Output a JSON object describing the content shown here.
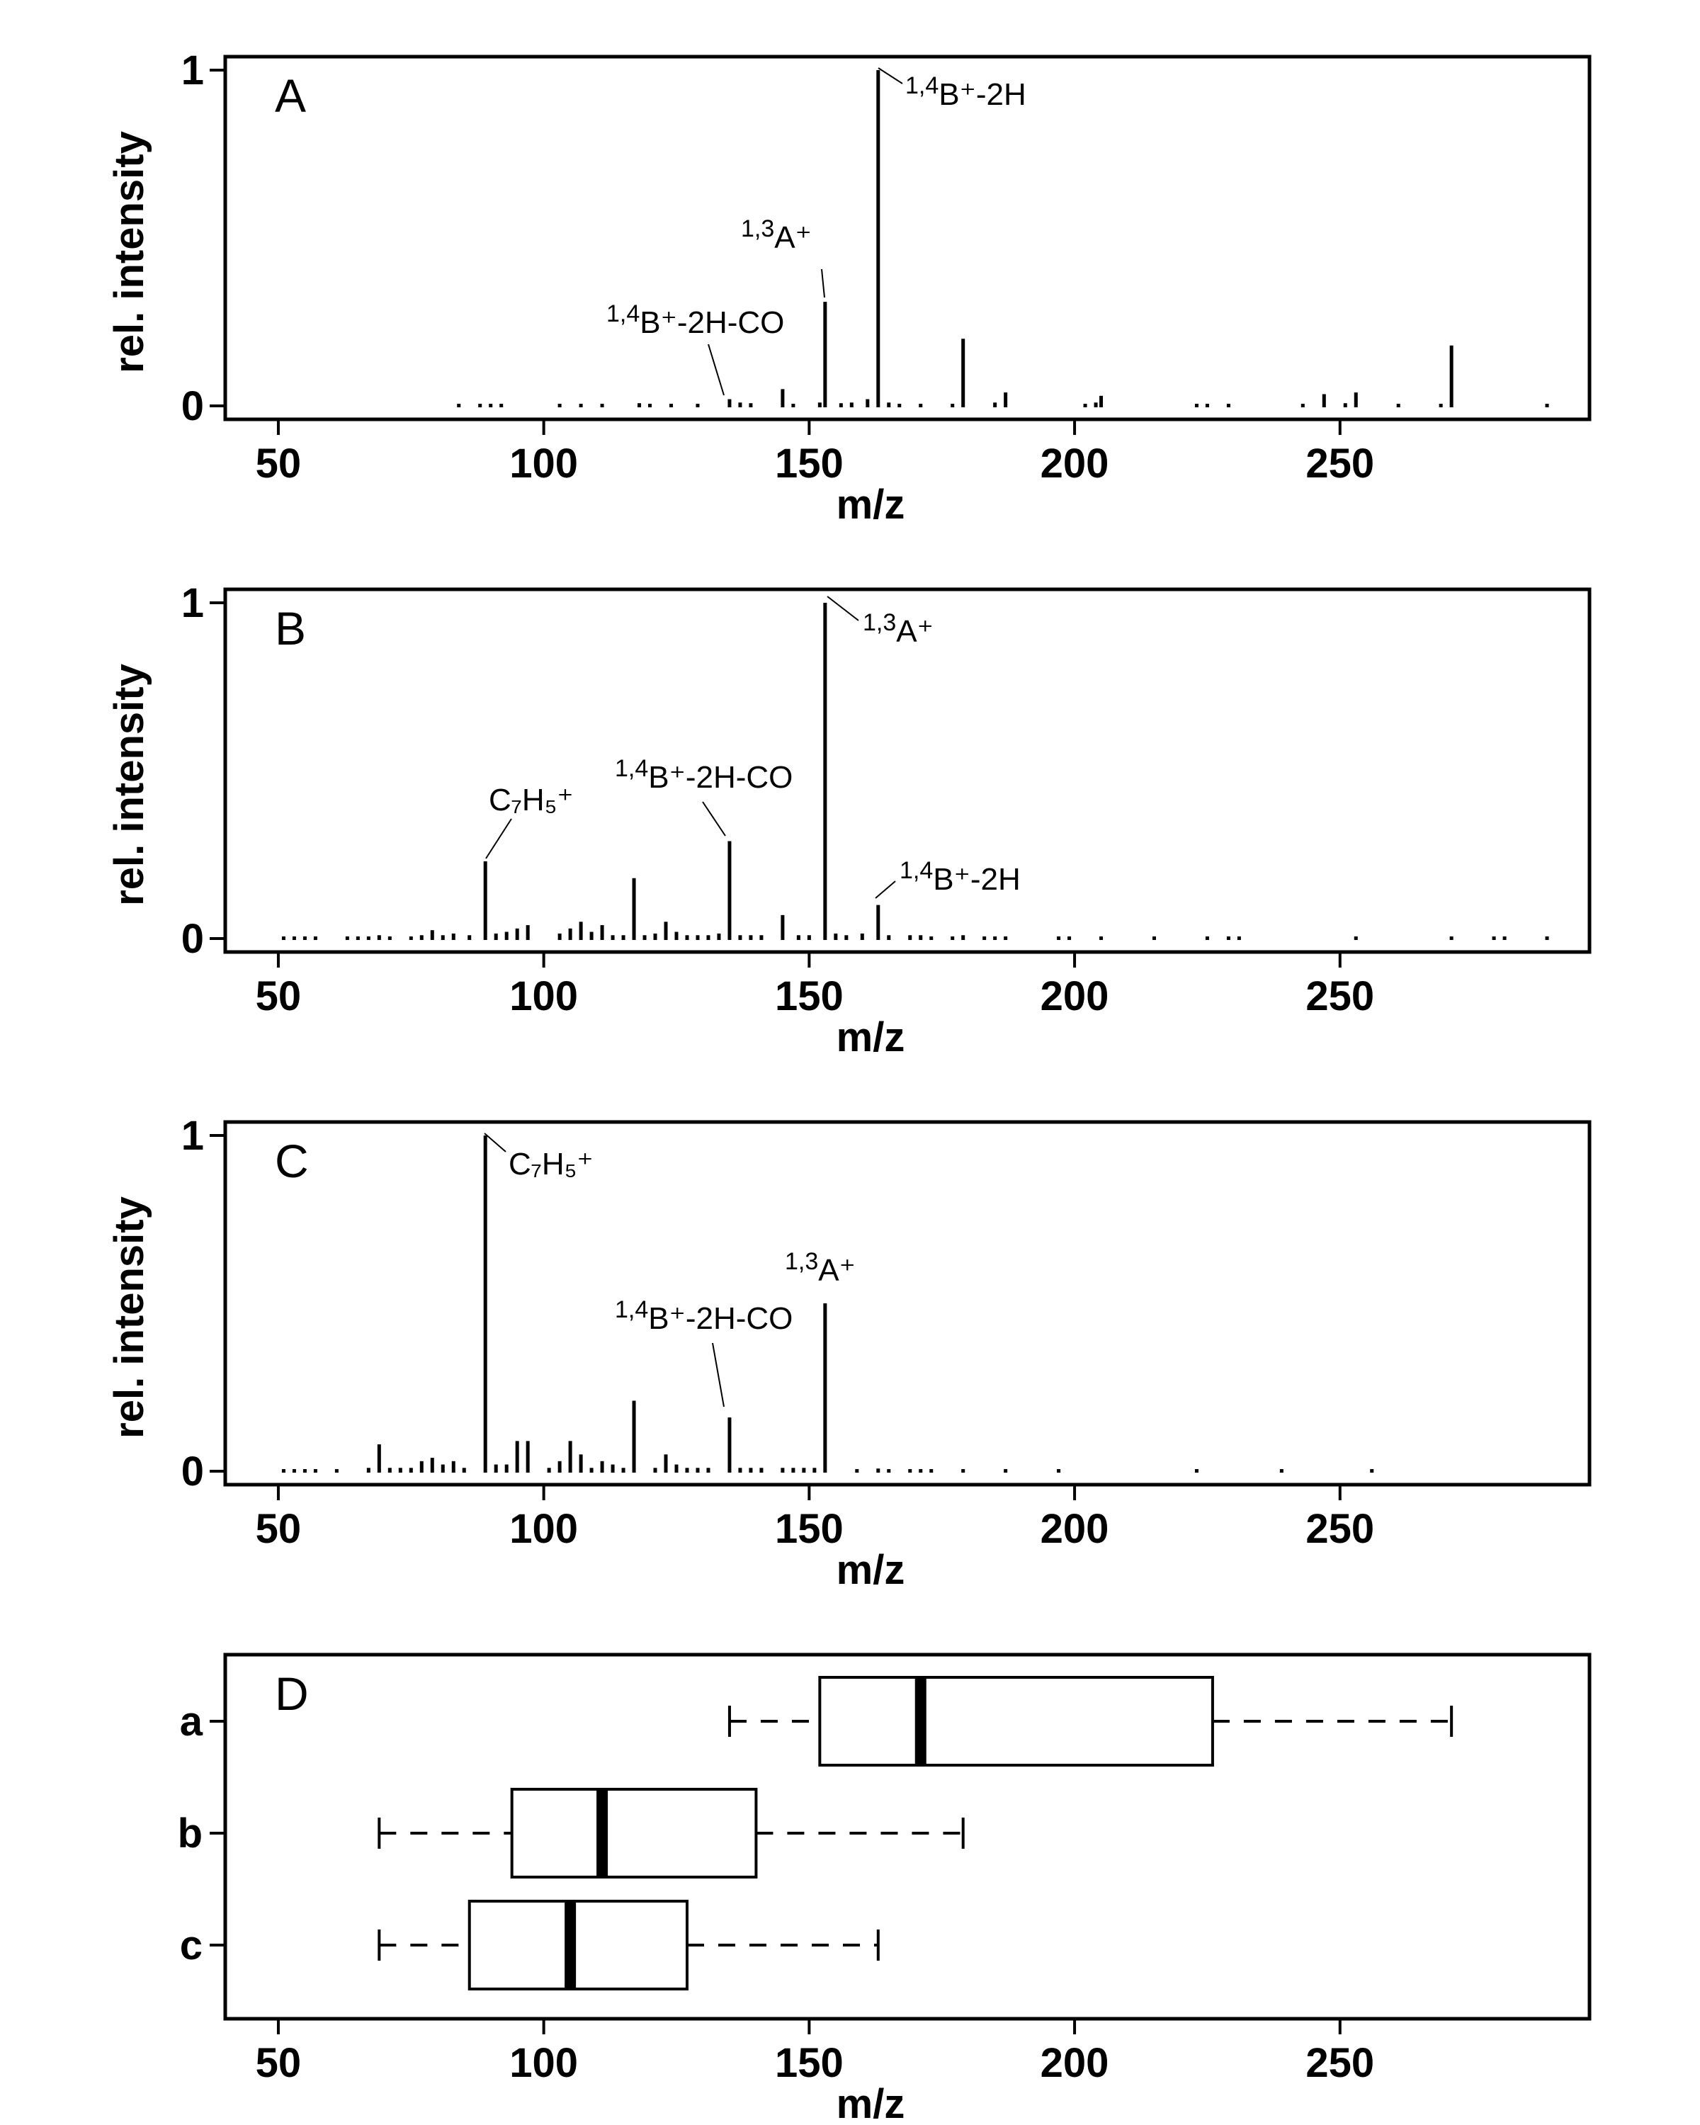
{
  "chart_data": [
    {
      "type": "bar",
      "panel_label": "A",
      "xlabel": "m/z",
      "ylabel": "rel. intensity",
      "xlim": [
        40,
        297
      ],
      "ylim": [
        -0.04,
        1.04
      ],
      "x_ticks": [
        50,
        100,
        150,
        200,
        250
      ],
      "y_ticks": [
        0,
        1
      ],
      "peaks": [
        {
          "x": 84,
          "y": 0.006
        },
        {
          "x": 88,
          "y": 0.005
        },
        {
          "x": 90,
          "y": 0.006
        },
        {
          "x": 92,
          "y": 0.005
        },
        {
          "x": 103,
          "y": 0.005
        },
        {
          "x": 107,
          "y": 0.006
        },
        {
          "x": 111,
          "y": 0.006
        },
        {
          "x": 118,
          "y": 0.008
        },
        {
          "x": 120,
          "y": 0.006
        },
        {
          "x": 124,
          "y": 0.005
        },
        {
          "x": 129,
          "y": 0.006
        },
        {
          "x": 135,
          "y": 0.02
        },
        {
          "x": 137,
          "y": 0.01
        },
        {
          "x": 139,
          "y": 0.008
        },
        {
          "x": 145,
          "y": 0.05
        },
        {
          "x": 147,
          "y": 0.006
        },
        {
          "x": 152,
          "y": 0.01
        },
        {
          "x": 153,
          "y": 0.31
        },
        {
          "x": 156,
          "y": 0.008
        },
        {
          "x": 158,
          "y": 0.01
        },
        {
          "x": 161,
          "y": 0.02
        },
        {
          "x": 163,
          "y": 1.0
        },
        {
          "x": 165,
          "y": 0.01
        },
        {
          "x": 167,
          "y": 0.006
        },
        {
          "x": 171,
          "y": 0.006
        },
        {
          "x": 177,
          "y": 0.006
        },
        {
          "x": 179,
          "y": 0.2
        },
        {
          "x": 185,
          "y": 0.01
        },
        {
          "x": 187,
          "y": 0.04
        },
        {
          "x": 202,
          "y": 0.006
        },
        {
          "x": 204,
          "y": 0.01
        },
        {
          "x": 205,
          "y": 0.03
        },
        {
          "x": 223,
          "y": 0.006
        },
        {
          "x": 225,
          "y": 0.006
        },
        {
          "x": 229,
          "y": 0.006
        },
        {
          "x": 243,
          "y": 0.006
        },
        {
          "x": 247,
          "y": 0.035
        },
        {
          "x": 251,
          "y": 0.008
        },
        {
          "x": 253,
          "y": 0.04
        },
        {
          "x": 261,
          "y": 0.005
        },
        {
          "x": 269,
          "y": 0.006
        },
        {
          "x": 271,
          "y": 0.18
        },
        {
          "x": 289,
          "y": 0.005
        }
      ],
      "annotations": [
        {
          "sup": "1,4",
          "text": "B⁺-2H",
          "peak_x": 163,
          "peak_y": 1.0
        },
        {
          "sup": "1,3",
          "text": "A⁺",
          "peak_x": 153,
          "peak_y": 0.31
        },
        {
          "sup": "1,4",
          "text": "B⁺-2H-CO",
          "peak_x": 135,
          "peak_y": 0.02
        }
      ]
    },
    {
      "type": "bar",
      "panel_label": "B",
      "xlabel": "m/z",
      "ylabel": "rel. intensity",
      "xlim": [
        40,
        297
      ],
      "ylim": [
        -0.04,
        1.04
      ],
      "x_ticks": [
        50,
        100,
        150,
        200,
        250
      ],
      "y_ticks": [
        0,
        1
      ],
      "peaks": [
        {
          "x": 51,
          "y": 0.006
        },
        {
          "x": 53,
          "y": 0.006
        },
        {
          "x": 55,
          "y": 0.006
        },
        {
          "x": 57,
          "y": 0.005
        },
        {
          "x": 63,
          "y": 0.006
        },
        {
          "x": 65,
          "y": 0.006
        },
        {
          "x": 67,
          "y": 0.006
        },
        {
          "x": 69,
          "y": 0.01
        },
        {
          "x": 71,
          "y": 0.006
        },
        {
          "x": 75,
          "y": 0.006
        },
        {
          "x": 77,
          "y": 0.01
        },
        {
          "x": 79,
          "y": 0.025
        },
        {
          "x": 81,
          "y": 0.01
        },
        {
          "x": 83,
          "y": 0.015
        },
        {
          "x": 86,
          "y": 0.01
        },
        {
          "x": 89,
          "y": 0.23
        },
        {
          "x": 91,
          "y": 0.015
        },
        {
          "x": 93,
          "y": 0.02
        },
        {
          "x": 95,
          "y": 0.03
        },
        {
          "x": 97,
          "y": 0.04
        },
        {
          "x": 103,
          "y": 0.015
        },
        {
          "x": 105,
          "y": 0.03
        },
        {
          "x": 107,
          "y": 0.05
        },
        {
          "x": 109,
          "y": 0.02
        },
        {
          "x": 111,
          "y": 0.04
        },
        {
          "x": 113,
          "y": 0.01
        },
        {
          "x": 115,
          "y": 0.01
        },
        {
          "x": 117,
          "y": 0.18
        },
        {
          "x": 119,
          "y": 0.01
        },
        {
          "x": 121,
          "y": 0.015
        },
        {
          "x": 123,
          "y": 0.05
        },
        {
          "x": 125,
          "y": 0.02
        },
        {
          "x": 127,
          "y": 0.01
        },
        {
          "x": 129,
          "y": 0.01
        },
        {
          "x": 131,
          "y": 0.01
        },
        {
          "x": 133,
          "y": 0.015
        },
        {
          "x": 135,
          "y": 0.29
        },
        {
          "x": 137,
          "y": 0.01
        },
        {
          "x": 139,
          "y": 0.01
        },
        {
          "x": 141,
          "y": 0.01
        },
        {
          "x": 145,
          "y": 0.07
        },
        {
          "x": 148,
          "y": 0.01
        },
        {
          "x": 150,
          "y": 0.01
        },
        {
          "x": 153,
          "y": 1.0
        },
        {
          "x": 155,
          "y": 0.015
        },
        {
          "x": 157,
          "y": 0.01
        },
        {
          "x": 160,
          "y": 0.015
        },
        {
          "x": 163,
          "y": 0.1
        },
        {
          "x": 165,
          "y": 0.01
        },
        {
          "x": 169,
          "y": 0.01
        },
        {
          "x": 171,
          "y": 0.01
        },
        {
          "x": 173,
          "y": 0.006
        },
        {
          "x": 177,
          "y": 0.006
        },
        {
          "x": 179,
          "y": 0.01
        },
        {
          "x": 183,
          "y": 0.006
        },
        {
          "x": 185,
          "y": 0.006
        },
        {
          "x": 187,
          "y": 0.006
        },
        {
          "x": 197,
          "y": 0.006
        },
        {
          "x": 199,
          "y": 0.005
        },
        {
          "x": 205,
          "y": 0.006
        },
        {
          "x": 215,
          "y": 0.005
        },
        {
          "x": 225,
          "y": 0.005
        },
        {
          "x": 229,
          "y": 0.005
        },
        {
          "x": 231,
          "y": 0.005
        },
        {
          "x": 253,
          "y": 0.005
        },
        {
          "x": 271,
          "y": 0.006
        },
        {
          "x": 279,
          "y": 0.005
        },
        {
          "x": 281,
          "y": 0.005
        },
        {
          "x": 289,
          "y": 0.005
        }
      ],
      "annotations": [
        {
          "sup": "1,3",
          "text": "A⁺",
          "peak_x": 153,
          "peak_y": 1.0
        },
        {
          "sup": "1,4",
          "text": "B⁺-2H-CO",
          "peak_x": 135,
          "peak_y": 0.29
        },
        {
          "sup": "",
          "text": "C₇H₅⁺",
          "peak_x": 89,
          "peak_y": 0.23
        },
        {
          "sup": "1,4",
          "text": "B⁺-2H",
          "peak_x": 163,
          "peak_y": 0.1
        }
      ]
    },
    {
      "type": "bar",
      "panel_label": "C",
      "xlabel": "m/z",
      "ylabel": "rel. intensity",
      "xlim": [
        40,
        297
      ],
      "ylim": [
        -0.04,
        1.04
      ],
      "x_ticks": [
        50,
        100,
        150,
        200,
        250
      ],
      "y_ticks": [
        0,
        1
      ],
      "peaks": [
        {
          "x": 51,
          "y": 0.006
        },
        {
          "x": 53,
          "y": 0.006
        },
        {
          "x": 55,
          "y": 0.006
        },
        {
          "x": 57,
          "y": 0.006
        },
        {
          "x": 61,
          "y": 0.005
        },
        {
          "x": 67,
          "y": 0.01
        },
        {
          "x": 69,
          "y": 0.08
        },
        {
          "x": 71,
          "y": 0.01
        },
        {
          "x": 73,
          "y": 0.01
        },
        {
          "x": 75,
          "y": 0.01
        },
        {
          "x": 77,
          "y": 0.03
        },
        {
          "x": 79,
          "y": 0.04
        },
        {
          "x": 81,
          "y": 0.02
        },
        {
          "x": 83,
          "y": 0.03
        },
        {
          "x": 85,
          "y": 0.01
        },
        {
          "x": 89,
          "y": 1.0
        },
        {
          "x": 91,
          "y": 0.02
        },
        {
          "x": 93,
          "y": 0.02
        },
        {
          "x": 95,
          "y": 0.09
        },
        {
          "x": 97,
          "y": 0.09
        },
        {
          "x": 101,
          "y": 0.01
        },
        {
          "x": 103,
          "y": 0.03
        },
        {
          "x": 105,
          "y": 0.09
        },
        {
          "x": 107,
          "y": 0.05
        },
        {
          "x": 109,
          "y": 0.01
        },
        {
          "x": 111,
          "y": 0.03
        },
        {
          "x": 113,
          "y": 0.02
        },
        {
          "x": 115,
          "y": 0.01
        },
        {
          "x": 117,
          "y": 0.21
        },
        {
          "x": 121,
          "y": 0.01
        },
        {
          "x": 123,
          "y": 0.05
        },
        {
          "x": 125,
          "y": 0.02
        },
        {
          "x": 127,
          "y": 0.01
        },
        {
          "x": 129,
          "y": 0.01
        },
        {
          "x": 131,
          "y": 0.01
        },
        {
          "x": 135,
          "y": 0.16
        },
        {
          "x": 137,
          "y": 0.01
        },
        {
          "x": 139,
          "y": 0.01
        },
        {
          "x": 141,
          "y": 0.01
        },
        {
          "x": 145,
          "y": 0.01
        },
        {
          "x": 147,
          "y": 0.01
        },
        {
          "x": 149,
          "y": 0.01
        },
        {
          "x": 151,
          "y": 0.01
        },
        {
          "x": 153,
          "y": 0.5
        },
        {
          "x": 159,
          "y": 0.006
        },
        {
          "x": 163,
          "y": 0.008
        },
        {
          "x": 165,
          "y": 0.006
        },
        {
          "x": 169,
          "y": 0.006
        },
        {
          "x": 171,
          "y": 0.006
        },
        {
          "x": 173,
          "y": 0.006
        },
        {
          "x": 179,
          "y": 0.005
        },
        {
          "x": 187,
          "y": 0.005
        },
        {
          "x": 197,
          "y": 0.005
        },
        {
          "x": 223,
          "y": 0.005
        },
        {
          "x": 239,
          "y": 0.005
        },
        {
          "x": 256,
          "y": 0.005
        }
      ],
      "annotations": [
        {
          "sup": "",
          "text": "C₇H₅⁺",
          "peak_x": 89,
          "peak_y": 1.0
        },
        {
          "sup": "1,3",
          "text": "A⁺",
          "peak_x": 153,
          "peak_y": 0.5
        },
        {
          "sup": "1,4",
          "text": "B⁺-2H-CO",
          "peak_x": 135,
          "peak_y": 0.16
        }
      ]
    },
    {
      "type": "boxplot",
      "panel_label": "D",
      "xlabel": "m/z",
      "xlim": [
        40,
        297
      ],
      "x_ticks": [
        50,
        100,
        150,
        200,
        250
      ],
      "categories": [
        "a",
        "b",
        "c"
      ],
      "boxes": [
        {
          "name": "a",
          "min": 135,
          "q1": 152,
          "median": 171,
          "q3": 226,
          "max": 271
        },
        {
          "name": "b",
          "min": 69,
          "q1": 94,
          "median": 111,
          "q3": 140,
          "max": 179
        },
        {
          "name": "c",
          "min": 69,
          "q1": 86,
          "median": 105,
          "q3": 127,
          "max": 163
        }
      ]
    }
  ]
}
